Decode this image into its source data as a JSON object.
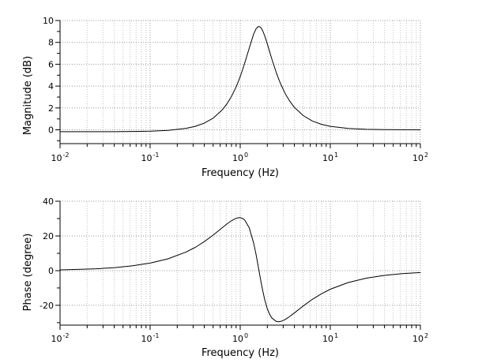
{
  "figure": {
    "background": "#ffffff",
    "colors": {
      "axis": "#000000",
      "curve": "#000000",
      "grid_major": "#999999",
      "grid_minor": "#c2c2c2",
      "text": "#000000"
    }
  },
  "chart_data": [
    {
      "id": "magnitude",
      "type": "line",
      "title": "",
      "xlabel": "Frequency (Hz)",
      "ylabel": "Magnitude (dB)",
      "xscale": "log",
      "grid": "dotted",
      "legend": "none",
      "xlim": [
        0.01,
        100
      ],
      "ylim": [
        -1.26,
        10
      ],
      "x_major_ticks": [
        0.01,
        0.1,
        1,
        10,
        100
      ],
      "x_tick_base": "10",
      "x_tick_exponents": [
        "-2",
        "-1",
        "0",
        "1",
        "2"
      ],
      "y_major_ticks": [
        0,
        2,
        4,
        6,
        8,
        10
      ],
      "y_tick_labels": [
        "0",
        "2",
        "4",
        "6",
        "8",
        "10"
      ],
      "y_minor_ticks": [
        -1,
        1,
        3,
        5,
        7,
        9
      ],
      "series": [
        {
          "name": "magnitude-db",
          "x": [
            0.01,
            0.0158,
            0.0251,
            0.0398,
            0.0631,
            0.1,
            0.158,
            0.251,
            0.316,
            0.398,
            0.501,
            0.631,
            0.708,
            0.794,
            0.891,
            0.944,
            1.0,
            1.059,
            1.122,
            1.259,
            1.413,
            1.5,
            1.585,
            1.65,
            1.7,
            1.778,
            1.875,
            1.995,
            2.11,
            2.239,
            2.512,
            2.65,
            2.818,
            3.162,
            3.548,
            3.981,
            5.012,
            6.31,
            7.943,
            10,
            15.85,
            25.12,
            39.81,
            63.1,
            100
          ],
          "y": [
            -0.17,
            -0.17,
            -0.17,
            -0.17,
            -0.15,
            -0.12,
            -0.05,
            0.14,
            0.32,
            0.61,
            1.07,
            1.82,
            2.34,
            3.01,
            3.84,
            4.33,
            4.87,
            5.46,
            6.11,
            7.47,
            8.79,
            9.25,
            9.45,
            9.43,
            9.33,
            9.06,
            8.58,
            7.89,
            7.21,
            6.51,
            5.24,
            4.72,
            4.18,
            3.31,
            2.62,
            2.07,
            1.3,
            0.81,
            0.51,
            0.32,
            0.13,
            0.05,
            0.02,
            0.01,
            0.0
          ]
        }
      ]
    },
    {
      "id": "phase",
      "type": "line",
      "title": "",
      "xlabel": "Frequency (Hz)",
      "ylabel": "Phase (degree)",
      "xscale": "log",
      "grid": "dotted",
      "legend": "none",
      "xlim": [
        0.01,
        100
      ],
      "ylim": [
        -31.4,
        40
      ],
      "x_major_ticks": [
        0.01,
        0.1,
        1,
        10,
        100
      ],
      "x_tick_base": "10",
      "x_tick_exponents": [
        "-2",
        "-1",
        "0",
        "1",
        "2"
      ],
      "y_major_ticks": [
        -20,
        0,
        20,
        40
      ],
      "y_tick_labels": [
        "-20",
        "0",
        "20",
        "40"
      ],
      "y_minor_ticks": [
        -30,
        -10,
        10,
        30
      ],
      "series": [
        {
          "name": "phase-deg",
          "x": [
            0.01,
            0.0158,
            0.0251,
            0.0398,
            0.0631,
            0.1,
            0.158,
            0.251,
            0.316,
            0.398,
            0.501,
            0.631,
            0.708,
            0.794,
            0.891,
            0.944,
            1.0,
            1.059,
            1.122,
            1.259,
            1.413,
            1.5,
            1.585,
            1.65,
            1.7,
            1.778,
            1.875,
            1.995,
            2.11,
            2.239,
            2.512,
            2.65,
            2.818,
            3.162,
            3.548,
            3.981,
            5.012,
            6.31,
            7.943,
            10,
            15.85,
            25.12,
            39.81,
            63.1,
            100
          ],
          "y": [
            0.43,
            0.69,
            1.09,
            1.73,
            2.74,
            4.33,
            6.82,
            10.75,
            13.41,
            16.65,
            20.47,
            24.7,
            26.8,
            28.68,
            30.09,
            30.47,
            30.52,
            30.11,
            29.14,
            24.71,
            15.76,
            9.23,
            2.42,
            -2.68,
            -6.37,
            -11.57,
            -16.9,
            -21.84,
            -24.93,
            -27.22,
            -29.26,
            -29.46,
            -29.28,
            -28.15,
            -26.41,
            -24.45,
            -20.34,
            -16.58,
            -13.37,
            -10.73,
            -6.83,
            -4.32,
            -2.73,
            -1.72,
            -1.09
          ]
        }
      ]
    }
  ]
}
